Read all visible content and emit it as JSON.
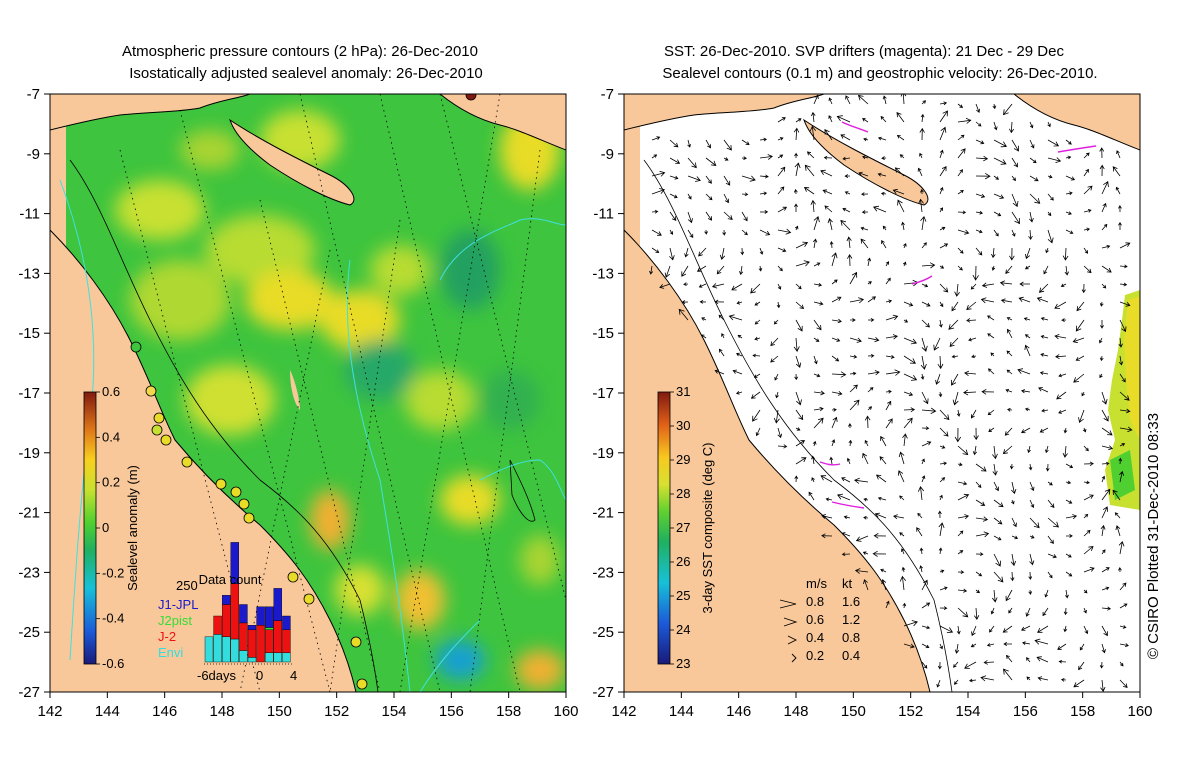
{
  "left_panel": {
    "title_line1": "Atmospheric pressure contours (2 hPa): 26-Dec-2010",
    "title_line2": "Isostatically adjusted sealevel anomaly: 26-Dec-2010",
    "colorbar": {
      "label": "Sealevel anomaly (m)",
      "ticks": [
        "0.6",
        "0.4",
        "0.2",
        "0",
        "-0.2",
        "-0.4",
        "-0.6"
      ],
      "range": [
        -0.6,
        0.6
      ]
    },
    "data_count": {
      "title": "Data count",
      "ymax_label": "250",
      "legend": [
        {
          "name": "J1-JPL",
          "color": "#1a1acc"
        },
        {
          "name": "J2pist",
          "color": "#33dd33"
        },
        {
          "name": "J-2",
          "color": "#ee1111"
        },
        {
          "name": "Envi",
          "color": "#33dddd"
        }
      ],
      "x_ticks": [
        "-6days",
        "0",
        "4"
      ],
      "bars": [
        {
          "day": -6,
          "stack": [
            {
              "s": "Envi",
              "v": 55
            },
            {
              "s": "J-2",
              "v": 0
            }
          ]
        },
        {
          "day": -5,
          "stack": [
            {
              "s": "Envi",
              "v": 60
            },
            {
              "s": "J-2",
              "v": 40
            }
          ]
        },
        {
          "day": -4,
          "stack": [
            {
              "s": "Envi",
              "v": 55
            },
            {
              "s": "J-2",
              "v": 70
            },
            {
              "s": "J1-JPL",
              "v": 20
            }
          ]
        },
        {
          "day": -3,
          "stack": [
            {
              "s": "Envi",
              "v": 50
            },
            {
              "s": "J-2",
              "v": 120
            },
            {
              "s": "J1-JPL",
              "v": 90
            }
          ]
        },
        {
          "day": -2,
          "stack": [
            {
              "s": "Envi",
              "v": 25
            },
            {
              "s": "J-2",
              "v": 60
            },
            {
              "s": "J1-JPL",
              "v": 40
            }
          ]
        },
        {
          "day": -1,
          "stack": [
            {
              "s": "Envi",
              "v": 10
            },
            {
              "s": "J-2",
              "v": 60
            },
            {
              "s": "J1-JPL",
              "v": 10
            }
          ]
        },
        {
          "day": 0,
          "stack": [
            {
              "s": "Envi",
              "v": 0
            },
            {
              "s": "J-2",
              "v": 80
            },
            {
              "s": "J1-JPL",
              "v": 40
            }
          ]
        },
        {
          "day": 1,
          "stack": [
            {
              "s": "Envi",
              "v": 20
            },
            {
              "s": "J-2",
              "v": 50
            },
            {
              "s": "J2pist",
              "v": 5
            },
            {
              "s": "J1-JPL",
              "v": 45
            }
          ]
        },
        {
          "day": 2,
          "stack": [
            {
              "s": "Envi",
              "v": 20
            },
            {
              "s": "J-2",
              "v": 70
            },
            {
              "s": "J1-JPL",
              "v": 70
            }
          ]
        },
        {
          "day": 3,
          "stack": [
            {
              "s": "Envi",
              "v": 20
            },
            {
              "s": "J-2",
              "v": 50
            },
            {
              "s": "J1-JPL",
              "v": 30
            }
          ]
        }
      ]
    }
  },
  "right_panel": {
    "title_line1": "SST: 26-Dec-2010. SVP drifters (magenta): 21 Dec - 29 Dec",
    "title_line2": "Sealevel contours (0.1 m) and geostrophic velocity: 26-Dec-2010.",
    "colorbar": {
      "label": "3-day SST composite (deg C)",
      "ticks": [
        "31",
        "30",
        "29",
        "28",
        "27",
        "26",
        "25",
        "24",
        "23"
      ],
      "range": [
        23,
        31
      ]
    },
    "velocity_legend": {
      "header_ms": "m/s",
      "header_kt": "kt",
      "rows": [
        {
          "ms": "0.8",
          "kt": "1.6"
        },
        {
          "ms": "0.6",
          "kt": "1.2"
        },
        {
          "ms": "0.4",
          "kt": "0.8"
        },
        {
          "ms": "0.2",
          "kt": "0.4"
        }
      ]
    }
  },
  "axes": {
    "x_ticks": [
      "142",
      "144",
      "146",
      "148",
      "150",
      "152",
      "154",
      "156",
      "158",
      "160"
    ],
    "y_ticks": [
      "-7",
      "-9",
      "-11",
      "-13",
      "-15",
      "-17",
      "-19",
      "-21",
      "-23",
      "-25",
      "-27"
    ],
    "lon_range": [
      142,
      160
    ],
    "lat_range": [
      -27,
      -7
    ]
  },
  "credit": "© CSIRO Plotted 31-Dec-2010 08:33",
  "colors": {
    "land": "#f8c89a",
    "ocean_green": "#3ec43e",
    "tide_gauge": "#f0d84a"
  }
}
